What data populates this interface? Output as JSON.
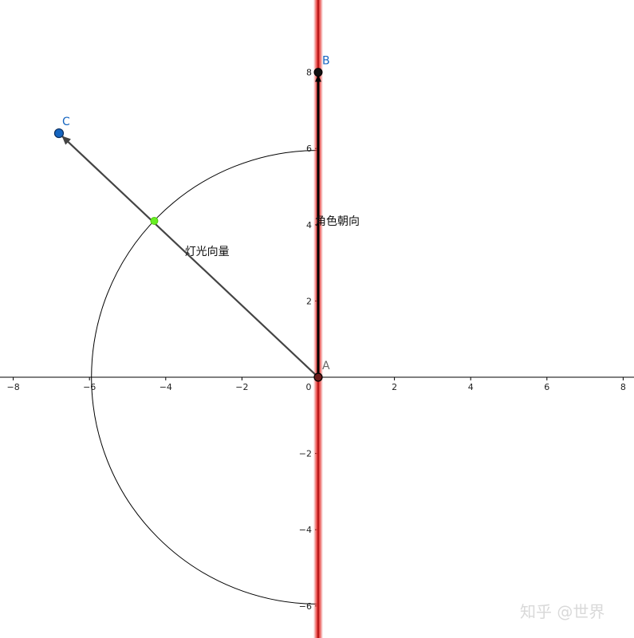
{
  "chart_data": {
    "type": "geometry",
    "xlim": [
      -8.2,
      8.1
    ],
    "ylim": [
      -6.8,
      9.8
    ],
    "grid": false,
    "x_ticks": [
      -8,
      -6,
      -4,
      -2,
      0,
      2,
      4,
      6,
      8
    ],
    "y_ticks": [
      8,
      6,
      4,
      2,
      -2,
      -4,
      -6
    ],
    "tick_labels_x": [
      "−8",
      "−6",
      "−4",
      "−2",
      "0",
      "2",
      "4",
      "6",
      "8"
    ],
    "tick_labels_y": [
      "8",
      "6",
      "4",
      "2",
      "−2",
      "−4",
      "−6"
    ],
    "points": [
      {
        "name": "A",
        "x": 0,
        "y": 0,
        "color": "#000000",
        "label": "A",
        "label_color": "#666666"
      },
      {
        "name": "B",
        "x": 0,
        "y": 8,
        "color": "#000000",
        "label": "B",
        "label_color": "#1565c0"
      },
      {
        "name": "C",
        "x": -6.8,
        "y": 6.4,
        "color": "#1565c0",
        "label": "C",
        "label_color": "#1565c0"
      },
      {
        "name": "intersection",
        "x": -4.3,
        "y": 4.1,
        "color": "#66ee22",
        "label": "",
        "label_color": ""
      }
    ],
    "line": {
      "x": 0,
      "color": "#e53935"
    },
    "arc": {
      "center": [
        0,
        0
      ],
      "radius": 5.95,
      "from_deg": 90,
      "to_deg": 270
    },
    "vectors": [
      {
        "from": [
          0,
          0
        ],
        "to": [
          0,
          8
        ],
        "label": "角色朝向",
        "color": "#000000"
      },
      {
        "from": [
          0,
          0
        ],
        "to": [
          -6.8,
          6.4
        ],
        "label": "灯光向量",
        "color": "#444444"
      }
    ]
  },
  "watermark": "知乎 @世界",
  "colors": {
    "axis": "#000000",
    "red_line": "#e53935",
    "blue_point": "#1565c0",
    "green_point": "#66ee22"
  }
}
